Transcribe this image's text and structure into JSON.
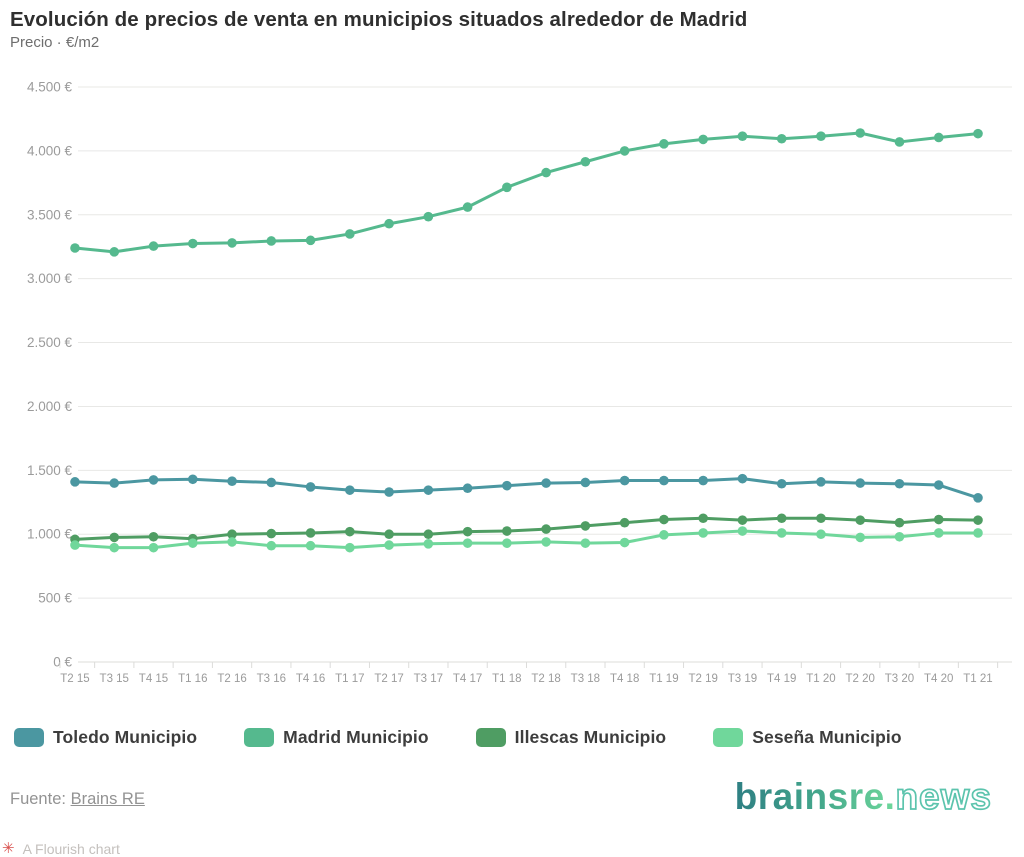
{
  "header": {
    "title": "Evolución de precios de venta en municipios situados alrededor de Madrid",
    "subtitle": "Precio · €/m2"
  },
  "chart_data": {
    "type": "line",
    "title": "Evolución de precios de venta en municipios situados alrededor de Madrid",
    "ylabel": "Precio · €/m2",
    "xlabel": "",
    "ylim": [
      0,
      4500
    ],
    "ytick_step": 500,
    "ytick_labels": [
      "0 €",
      "500 €",
      "1.000 €",
      "1.500 €",
      "2.000 €",
      "2.500 €",
      "3.000 €",
      "3.500 €",
      "4.000 €",
      "4.500 €"
    ],
    "grid": true,
    "legend_position": "bottom",
    "marker": "circle",
    "categories": [
      "T2 15",
      "T3 15",
      "T4 15",
      "T1 16",
      "T2 16",
      "T3 16",
      "T4 16",
      "T1 17",
      "T2 17",
      "T3 17",
      "T4 17",
      "T1 18",
      "T2 18",
      "T3 18",
      "T4 18",
      "T1 19",
      "T2 19",
      "T3 19",
      "T4 19",
      "T1 20",
      "T2 20",
      "T3 20",
      "T4 20",
      "T1 21"
    ],
    "series": [
      {
        "name": "Toledo Municipio",
        "color": "#4b97a1",
        "values": [
          1410,
          1400,
          1425,
          1430,
          1415,
          1405,
          1370,
          1345,
          1330,
          1345,
          1360,
          1380,
          1400,
          1405,
          1420,
          1420,
          1420,
          1435,
          1395,
          1410,
          1400,
          1395,
          1385,
          1285
        ]
      },
      {
        "name": "Madrid Municipio",
        "color": "#55b98e",
        "values": [
          3240,
          3210,
          3255,
          3275,
          3280,
          3295,
          3300,
          3350,
          3430,
          3485,
          3560,
          3715,
          3830,
          3915,
          4000,
          4055,
          4090,
          4115,
          4095,
          4115,
          4140,
          4070,
          4105,
          4135
        ]
      },
      {
        "name": "Illescas Municipio",
        "color": "#4f9d63",
        "values": [
          960,
          975,
          980,
          965,
          1000,
          1005,
          1010,
          1020,
          1000,
          1000,
          1020,
          1025,
          1040,
          1065,
          1090,
          1115,
          1125,
          1110,
          1125,
          1125,
          1110,
          1090,
          1115,
          1110
        ]
      },
      {
        "name": "Seseña Municipio",
        "color": "#70d79b",
        "values": [
          915,
          895,
          895,
          930,
          940,
          910,
          910,
          895,
          915,
          925,
          930,
          930,
          940,
          930,
          935,
          995,
          1010,
          1025,
          1010,
          1000,
          975,
          980,
          1010,
          1010
        ]
      }
    ]
  },
  "footer": {
    "source_label": "Fuente:",
    "source_link": "Brains RE",
    "attribution_icon": "flourish-asterisk",
    "attribution_text": "A Flourish chart",
    "logo_main": "brainsre.",
    "logo_suffix": "news"
  },
  "colors": {
    "grid": "#e8e8e6",
    "axis": "#dcdcda",
    "tick_label": "#9b9b9b",
    "background": "#ffffff"
  }
}
